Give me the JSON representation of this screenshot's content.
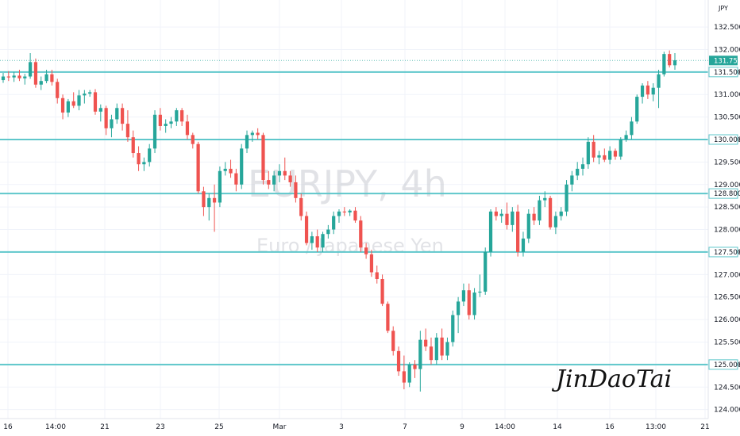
{
  "chart_data": {
    "type": "candlestick",
    "title": "EURJPY, 4h",
    "subtitle": "Euro / Japanese Yen",
    "currency": "JPY",
    "signature": "JinDaoTai",
    "ylim": [
      123.8,
      133.1
    ],
    "y_ticks": [
      "124.000",
      "124.500",
      "125.000",
      "125.500",
      "126.000",
      "126.500",
      "127.000",
      "127.500",
      "128.000",
      "128.500",
      "129.000",
      "129.500",
      "130.000",
      "130.500",
      "131.000",
      "131.500",
      "132.000",
      "132.500"
    ],
    "x_ticks": [
      "16",
      "14:00",
      "21",
      "23",
      "25",
      "Mar",
      "3",
      "7",
      "9",
      "14:00",
      "14",
      "16",
      "13:00",
      "21"
    ],
    "levels": [
      131.5,
      130.0,
      128.8,
      127.5,
      125.0
    ],
    "level_labels": [
      "131.500",
      "130.000",
      "128.800",
      "127.500",
      "125.000"
    ],
    "last_price": 131.756,
    "last_price_label": "131.756",
    "up_color": "#26a69a",
    "down_color": "#ef5350",
    "level_color": "#5fc7cb",
    "candles": [
      [
        131.32,
        131.48,
        131.26,
        131.4
      ],
      [
        131.4,
        131.52,
        131.3,
        131.38
      ],
      [
        131.38,
        131.5,
        131.28,
        131.42
      ],
      [
        131.42,
        131.55,
        131.3,
        131.36
      ],
      [
        131.36,
        131.46,
        131.22,
        131.4
      ],
      [
        131.4,
        131.92,
        131.35,
        131.72
      ],
      [
        131.72,
        131.8,
        131.15,
        131.22
      ],
      [
        131.22,
        131.4,
        131.1,
        131.3
      ],
      [
        131.3,
        131.55,
        131.25,
        131.45
      ],
      [
        131.45,
        131.55,
        131.2,
        131.28
      ],
      [
        131.28,
        131.35,
        130.8,
        130.92
      ],
      [
        130.92,
        131.0,
        130.45,
        130.6
      ],
      [
        130.6,
        130.9,
        130.5,
        130.85
      ],
      [
        130.85,
        131.05,
        130.7,
        130.75
      ],
      [
        130.75,
        131.1,
        130.65,
        130.98
      ],
      [
        130.98,
        131.1,
        130.8,
        131.02
      ],
      [
        131.02,
        131.1,
        130.95,
        131.05
      ],
      [
        131.05,
        131.12,
        130.55,
        130.62
      ],
      [
        130.62,
        130.78,
        130.4,
        130.7
      ],
      [
        130.7,
        130.75,
        130.1,
        130.25
      ],
      [
        130.25,
        130.55,
        130.05,
        130.45
      ],
      [
        130.45,
        130.8,
        130.35,
        130.7
      ],
      [
        130.7,
        130.8,
        130.2,
        130.35
      ],
      [
        130.35,
        130.65,
        129.95,
        130.05
      ],
      [
        130.05,
        130.2,
        129.6,
        129.7
      ],
      [
        129.7,
        129.85,
        129.3,
        129.45
      ],
      [
        129.45,
        129.6,
        129.3,
        129.5
      ],
      [
        129.5,
        129.9,
        129.4,
        129.8
      ],
      [
        129.8,
        130.65,
        129.7,
        130.55
      ],
      [
        130.55,
        130.7,
        130.2,
        130.3
      ],
      [
        130.3,
        130.45,
        130.15,
        130.35
      ],
      [
        130.35,
        130.5,
        130.25,
        130.4
      ],
      [
        130.4,
        130.7,
        130.3,
        130.65
      ],
      [
        130.65,
        130.7,
        130.3,
        130.4
      ],
      [
        130.4,
        130.55,
        130.0,
        130.1
      ],
      [
        130.1,
        130.15,
        129.8,
        129.9
      ],
      [
        129.9,
        129.95,
        128.8,
        128.85
      ],
      [
        128.85,
        128.95,
        128.3,
        128.5
      ],
      [
        128.5,
        128.8,
        128.2,
        128.7
      ],
      [
        128.7,
        129.0,
        127.95,
        128.6
      ],
      [
        128.6,
        129.4,
        128.5,
        129.3
      ],
      [
        129.3,
        129.5,
        129.2,
        129.35
      ],
      [
        129.35,
        129.55,
        129.15,
        129.25
      ],
      [
        129.25,
        129.35,
        128.85,
        129.0
      ],
      [
        129.0,
        129.9,
        128.9,
        129.8
      ],
      [
        129.8,
        130.2,
        129.7,
        130.1
      ],
      [
        130.1,
        130.2,
        129.95,
        130.15
      ],
      [
        130.15,
        130.25,
        130.0,
        130.1
      ],
      [
        130.1,
        130.15,
        129.0,
        129.1
      ],
      [
        129.1,
        129.3,
        128.9,
        129.0
      ],
      [
        129.0,
        129.3,
        128.85,
        129.2
      ],
      [
        129.2,
        129.45,
        129.05,
        129.3
      ],
      [
        129.3,
        129.6,
        129.1,
        129.2
      ],
      [
        129.2,
        129.3,
        128.95,
        129.05
      ],
      [
        129.05,
        129.2,
        128.6,
        128.7
      ],
      [
        128.7,
        128.8,
        128.2,
        128.3
      ],
      [
        128.3,
        128.4,
        127.65,
        127.7
      ],
      [
        127.7,
        127.95,
        127.55,
        127.85
      ],
      [
        127.85,
        128.0,
        127.5,
        127.6
      ],
      [
        127.6,
        127.95,
        127.5,
        127.9
      ],
      [
        127.9,
        128.1,
        127.8,
        128.0
      ],
      [
        128.0,
        128.4,
        127.9,
        128.3
      ],
      [
        128.3,
        128.45,
        128.15,
        128.4
      ],
      [
        128.4,
        128.5,
        128.3,
        128.38
      ],
      [
        128.38,
        128.45,
        128.3,
        128.42
      ],
      [
        128.42,
        128.5,
        128.15,
        128.2
      ],
      [
        128.2,
        128.3,
        127.5,
        127.6
      ],
      [
        127.6,
        127.7,
        127.35,
        127.45
      ],
      [
        127.45,
        127.55,
        126.95,
        127.05
      ],
      [
        127.05,
        127.2,
        126.8,
        126.9
      ],
      [
        126.9,
        127.0,
        126.3,
        126.35
      ],
      [
        126.35,
        126.4,
        125.7,
        125.75
      ],
      [
        125.75,
        125.85,
        125.2,
        125.3
      ],
      [
        125.3,
        125.4,
        124.75,
        124.85
      ],
      [
        124.85,
        125.2,
        124.45,
        124.6
      ],
      [
        124.6,
        125.05,
        124.5,
        125.0
      ],
      [
        125.0,
        125.1,
        124.7,
        124.9
      ],
      [
        124.9,
        125.75,
        124.4,
        125.55
      ],
      [
        125.55,
        125.8,
        125.3,
        125.4
      ],
      [
        125.4,
        125.6,
        125.0,
        125.1
      ],
      [
        125.1,
        125.7,
        125.0,
        125.6
      ],
      [
        125.6,
        125.8,
        125.1,
        125.2
      ],
      [
        125.2,
        125.6,
        125.1,
        125.5
      ],
      [
        125.5,
        126.2,
        125.4,
        126.1
      ],
      [
        126.1,
        126.5,
        125.7,
        126.4
      ],
      [
        126.4,
        126.8,
        126.3,
        126.65
      ],
      [
        126.65,
        126.8,
        126.0,
        126.1
      ],
      [
        126.1,
        126.7,
        126.0,
        126.6
      ],
      [
        126.6,
        127.0,
        126.5,
        126.62
      ],
      [
        126.62,
        127.6,
        126.55,
        127.5
      ],
      [
        127.5,
        128.45,
        127.4,
        128.4
      ],
      [
        128.4,
        128.5,
        128.2,
        128.3
      ],
      [
        128.3,
        128.45,
        128.15,
        128.35
      ],
      [
        128.35,
        128.6,
        128.0,
        128.1
      ],
      [
        128.1,
        128.5,
        127.95,
        128.4
      ],
      [
        128.4,
        128.55,
        127.4,
        127.5
      ],
      [
        127.5,
        127.95,
        127.4,
        127.8
      ],
      [
        127.8,
        128.45,
        127.7,
        128.35
      ],
      [
        128.35,
        128.5,
        128.1,
        128.2
      ],
      [
        128.2,
        128.75,
        128.1,
        128.65
      ],
      [
        128.65,
        128.85,
        128.5,
        128.7
      ],
      [
        128.7,
        128.75,
        128.0,
        128.05
      ],
      [
        128.05,
        128.4,
        127.9,
        128.3
      ],
      [
        128.3,
        128.5,
        128.2,
        128.4
      ],
      [
        128.4,
        129.1,
        128.3,
        129.0
      ],
      [
        129.0,
        129.3,
        128.85,
        129.2
      ],
      [
        129.2,
        129.5,
        129.1,
        129.35
      ],
      [
        129.35,
        129.6,
        129.2,
        129.45
      ],
      [
        129.45,
        130.05,
        129.35,
        129.95
      ],
      [
        129.95,
        130.1,
        129.5,
        129.6
      ],
      [
        129.6,
        129.75,
        129.45,
        129.65
      ],
      [
        129.65,
        129.8,
        129.5,
        129.55
      ],
      [
        129.55,
        129.85,
        129.45,
        129.75
      ],
      [
        129.75,
        129.8,
        129.55,
        129.62
      ],
      [
        129.62,
        130.05,
        129.55,
        130.0
      ],
      [
        130.0,
        130.2,
        129.95,
        130.1
      ],
      [
        130.1,
        130.5,
        130.0,
        130.4
      ],
      [
        130.4,
        131.0,
        130.35,
        130.95
      ],
      [
        130.95,
        131.25,
        130.8,
        131.2
      ],
      [
        131.2,
        131.3,
        130.9,
        131.0
      ],
      [
        131.0,
        131.25,
        130.85,
        131.15
      ],
      [
        131.15,
        131.55,
        130.7,
        131.45
      ],
      [
        131.45,
        131.95,
        131.4,
        131.9
      ],
      [
        131.9,
        131.98,
        131.6,
        131.65
      ],
      [
        131.65,
        131.92,
        131.55,
        131.76
      ]
    ]
  }
}
